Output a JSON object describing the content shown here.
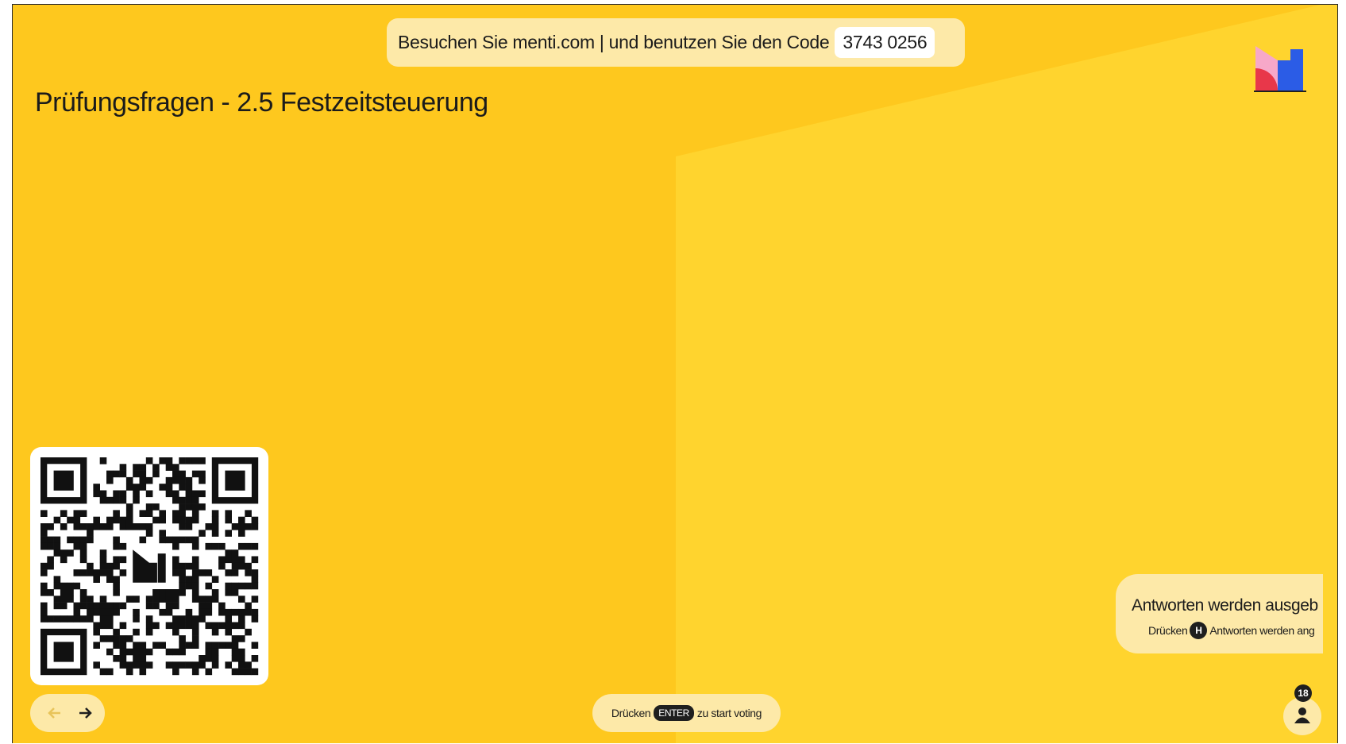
{
  "header": {
    "join_text": "Besuchen Sie menti.com | und benutzen Sie den Code",
    "code": "3743 0256"
  },
  "title": "Prüfungsfragen - 2.5 Festzeitsteuerung",
  "answers_card": {
    "title": "Antworten werden ausgeb",
    "hint_prefix": "Drücken",
    "key": "H",
    "hint_suffix": "Antworten werden ang"
  },
  "voting_hint": {
    "prefix": "Drücken",
    "key": "ENTER",
    "suffix": "zu start voting"
  },
  "participants": "18"
}
